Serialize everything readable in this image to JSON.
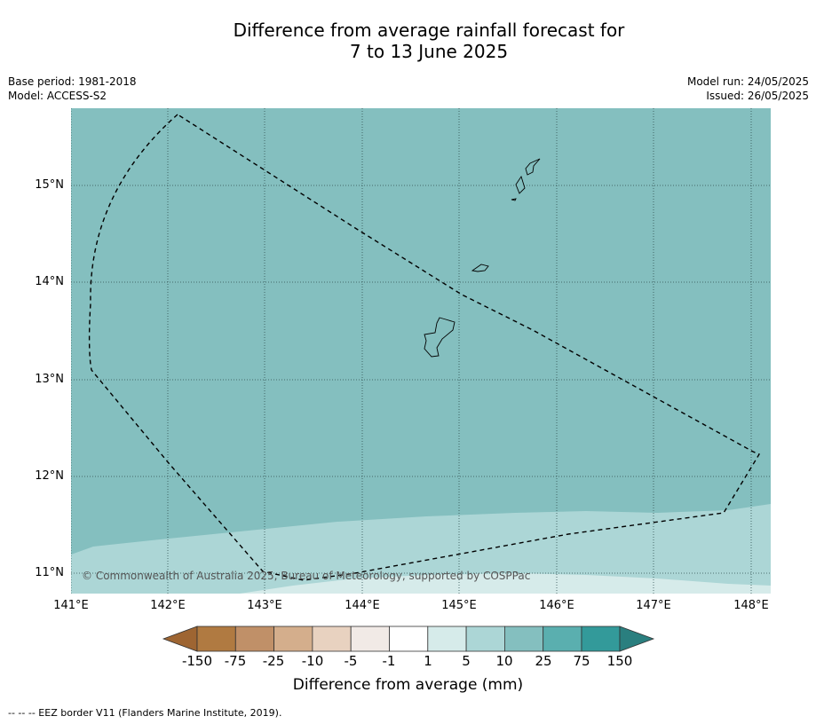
{
  "title": {
    "line1": "Difference from average rainfall forecast for",
    "line2": "7 to 13 June 2025"
  },
  "meta": {
    "base_period": "Base period: 1981-2018",
    "model": "Model: ACCESS-S2",
    "model_run": "Model run: 24/05/2025",
    "issued": "Issued: 26/05/2025"
  },
  "map": {
    "copyright": "© Commonwealth of Australia 2025, Bureau of Meteorology, supported by COSPPac",
    "lat_labels": [
      "15°N",
      "14°N",
      "13°N",
      "12°N",
      "11°N"
    ],
    "lon_labels": [
      "141°E",
      "142°E",
      "143°E",
      "144°E",
      "145°E",
      "146°E",
      "147°E",
      "148°E"
    ],
    "features": [
      "EEZ border (dashed)",
      "Guam",
      "Rota",
      "Tinian",
      "Saipan"
    ]
  },
  "colorbar": {
    "title": "Difference from average (mm)",
    "labels": [
      "-150",
      "-75",
      "-25",
      "-10",
      "-5",
      "-1",
      "1",
      "5",
      "10",
      "25",
      "75",
      "150"
    ],
    "colors": {
      "below_min": "#9e6532",
      "bins": [
        "#b07a41",
        "#c09068",
        "#d4ae8c",
        "#e8d2c0",
        "#f1eae6",
        "#ffffff",
        "#d6ebea",
        "#acd6d6",
        "#84bfbf",
        "#5aafaf",
        "#339a9a"
      ],
      "above_max": "#2a7f7f"
    }
  },
  "footer": "-- -- -- EEZ border V11 (Flanders Marine Institute, 2019)."
}
